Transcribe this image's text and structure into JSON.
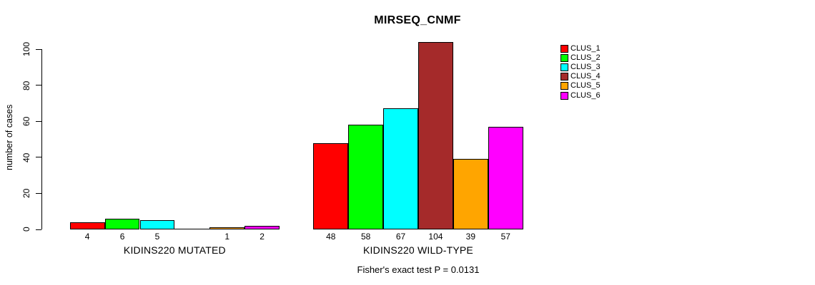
{
  "chart_data": {
    "type": "bar",
    "title": "MIRSEQ_CNMF",
    "ylabel": "number of cases",
    "ylim": [
      0,
      100
    ],
    "yticks": [
      0,
      20,
      40,
      60,
      80,
      100
    ],
    "grid": false,
    "legend_position": "right-outside",
    "legend": [
      {
        "label": "CLUS_1",
        "color": "#FF0000"
      },
      {
        "label": "CLUS_2",
        "color": "#00FF00"
      },
      {
        "label": "CLUS_3",
        "color": "#00FFFF"
      },
      {
        "label": "CLUS_4",
        "color": "#A52A2A"
      },
      {
        "label": "CLUS_5",
        "color": "#FFA500"
      },
      {
        "label": "CLUS_6",
        "color": "#FF00FF"
      }
    ],
    "groups": [
      {
        "label": "KIDINS220 MUTATED",
        "series": [
          "CLUS_1",
          "CLUS_2",
          "CLUS_3",
          "CLUS_4",
          "CLUS_5",
          "CLUS_6"
        ],
        "values": [
          4,
          6,
          5,
          0,
          1,
          2
        ],
        "bar_labels": [
          "4",
          "6",
          "5",
          "",
          "1",
          "2"
        ]
      },
      {
        "label": "KIDINS220 WILD-TYPE",
        "series": [
          "CLUS_1",
          "CLUS_2",
          "CLUS_3",
          "CLUS_4",
          "CLUS_5",
          "CLUS_6"
        ],
        "values": [
          48,
          58,
          67,
          104,
          39,
          57
        ],
        "bar_labels": [
          "48",
          "58",
          "67",
          "104",
          "39",
          "57"
        ]
      }
    ],
    "annotation": "Fisher's exact test P = 0.0131"
  }
}
